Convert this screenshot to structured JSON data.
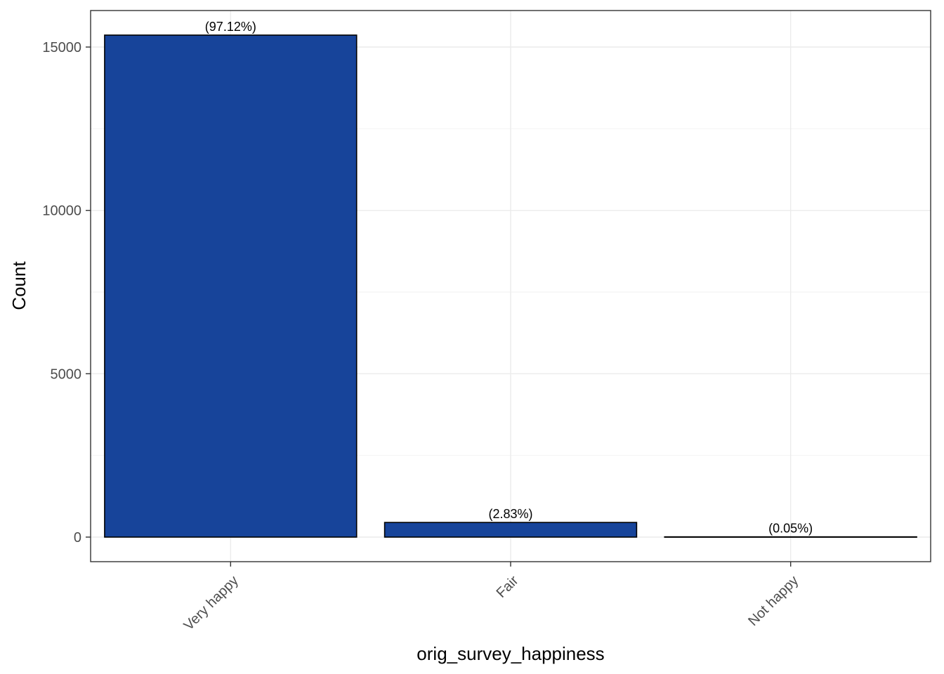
{
  "chart_data": {
    "type": "bar",
    "categories": [
      "Very happy",
      "Fair",
      "Not happy"
    ],
    "values": [
      15365,
      448,
      8
    ],
    "data_labels": [
      "(97.12%)",
      "(2.83%)",
      "(0.05%)"
    ],
    "title": "",
    "xlabel": "orig_survey_happiness",
    "ylabel": "Count",
    "ylim": [
      -750,
      16100
    ],
    "yticks": [
      0,
      5000,
      10000,
      15000
    ],
    "grid": true,
    "legend": "none",
    "colors": {
      "bar_fill": "#17449A",
      "bar_stroke": "#000000",
      "panel_border": "#333333",
      "grid": "#ebebeb",
      "tick_text": "#4d4d4d"
    }
  }
}
